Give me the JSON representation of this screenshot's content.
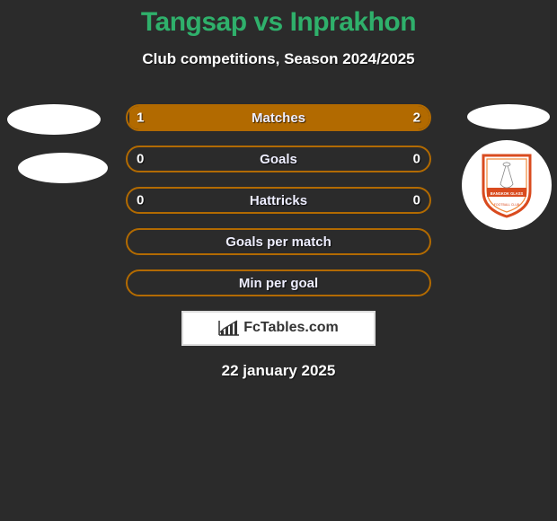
{
  "title_color": "#2fb06b",
  "title": "Tangsap vs Inprakhon",
  "subtitle": "Club competitions, Season 2024/2025",
  "bars": [
    {
      "label": "Matches",
      "left": "1",
      "right": "2",
      "fill_side": "right",
      "fill_pct": 100,
      "border": "#b26a00",
      "fill_color": "#b26a00"
    },
    {
      "label": "Goals",
      "left": "0",
      "right": "0",
      "fill_side": "none",
      "fill_pct": 0,
      "border": "#b26a00",
      "fill_color": "#b26a00"
    },
    {
      "label": "Hattricks",
      "left": "0",
      "right": "0",
      "fill_side": "none",
      "fill_pct": 0,
      "border": "#b26a00",
      "fill_color": "#b26a00"
    },
    {
      "label": "Goals per match",
      "left": "",
      "right": "",
      "fill_side": "none",
      "fill_pct": 0,
      "border": "#b26a00",
      "fill_color": "#b26a00"
    },
    {
      "label": "Min per goal",
      "left": "",
      "right": "",
      "fill_side": "none",
      "fill_pct": 0,
      "border": "#b26a00",
      "fill_color": "#b26a00"
    }
  ],
  "brand": "FcTables.com",
  "date": "22 january 2025",
  "shield_border": "#d94b1f",
  "shield_inner": "#ffffff",
  "shield_accent": "#f0893a",
  "shield_band": "#d94b1f",
  "shield_text": "BANGKOK GLASS"
}
